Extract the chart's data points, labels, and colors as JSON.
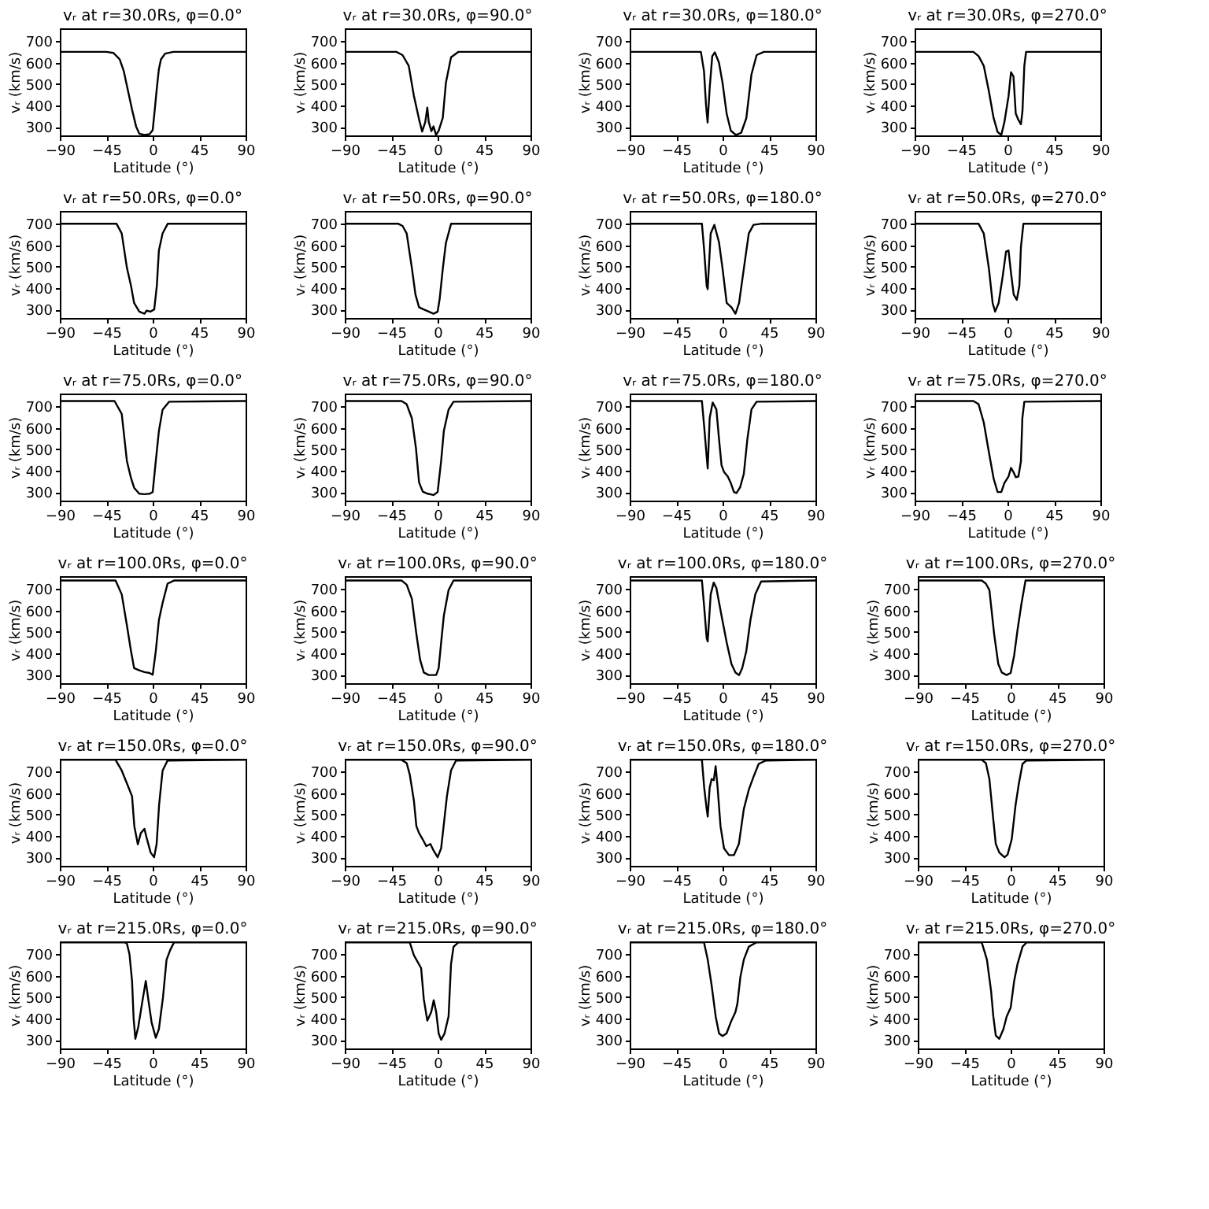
{
  "chart_data": [
    {
      "type": "line",
      "title": "vᵣ at r=30.0Rs, φ=0.0°",
      "xlabel": "Latitude (°)",
      "ylabel": "vᵣ (km/s)",
      "color": "#000000",
      "xlim": [
        -90,
        90
      ],
      "ylim": [
        260,
        760
      ],
      "xticks": [
        -90,
        -45,
        0,
        45,
        90
      ],
      "yticks": [
        300,
        400,
        500,
        600,
        700
      ],
      "x": [
        -90,
        -45,
        -38,
        -32,
        -28,
        -24,
        -20,
        -16,
        -13,
        -8,
        -3,
        0,
        2,
        4,
        6,
        8,
        12,
        20,
        90
      ],
      "values": [
        650,
        650,
        645,
        615,
        560,
        470,
        380,
        300,
        268,
        262,
        266,
        285,
        380,
        480,
        570,
        615,
        642,
        650,
        650
      ]
    },
    {
      "type": "line",
      "title": "vᵣ at r=30.0Rs, φ=90.0°",
      "xlabel": "Latitude (°)",
      "ylabel": "vᵣ (km/s)",
      "color": "#000000",
      "xlim": [
        -90,
        90
      ],
      "ylim": [
        260,
        760
      ],
      "xticks": [
        -90,
        -45,
        0,
        45,
        90
      ],
      "yticks": [
        300,
        400,
        500,
        600,
        700
      ],
      "x": [
        -90,
        -40,
        -34,
        -28,
        -23,
        -18,
        -15,
        -12,
        -10,
        -8.6,
        -6,
        -4,
        -1.5,
        1,
        5,
        8,
        13,
        20,
        90
      ],
      "values": [
        650,
        650,
        635,
        585,
        445,
        335,
        278,
        322,
        390,
        322,
        280,
        302,
        262,
        282,
        342,
        505,
        625,
        650,
        650
      ]
    },
    {
      "type": "line",
      "title": "vᵣ at r=30.0Rs, φ=180.0°",
      "xlabel": "Latitude (°)",
      "ylabel": "vᵣ (km/s)",
      "color": "#000000",
      "xlim": [
        -90,
        90
      ],
      "ylim": [
        260,
        760
      ],
      "xticks": [
        -90,
        -45,
        0,
        45,
        90
      ],
      "yticks": [
        300,
        400,
        500,
        600,
        700
      ],
      "x": [
        -90,
        -21,
        -18,
        -16,
        -14.5,
        -12.5,
        -10,
        -7.5,
        -3.5,
        0,
        4,
        8,
        13,
        18,
        23,
        28,
        33,
        40,
        90
      ],
      "values": [
        650,
        650,
        560,
        400,
        320,
        480,
        630,
        648,
        600,
        505,
        360,
        282,
        262,
        272,
        340,
        545,
        635,
        650,
        650
      ]
    },
    {
      "type": "line",
      "title": "vᵣ at r=30.0Rs, φ=270.0°",
      "xlabel": "Latitude (°)",
      "ylabel": "vᵣ (km/s)",
      "color": "#000000",
      "xlim": [
        -90,
        90
      ],
      "ylim": [
        260,
        760
      ],
      "xticks": [
        -90,
        -45,
        0,
        45,
        90
      ],
      "yticks": [
        300,
        400,
        500,
        600,
        700
      ],
      "x": [
        -90,
        -33,
        -28,
        -23,
        -18,
        -13.5,
        -9.6,
        -6,
        -3,
        1,
        3.4,
        5.8,
        8,
        10.6,
        13,
        14.5,
        16.3,
        18,
        90
      ],
      "values": [
        650,
        650,
        630,
        585,
        465,
        342,
        276,
        262,
        322,
        443,
        555,
        535,
        362,
        332,
        312,
        373,
        585,
        650,
        650
      ]
    },
    {
      "type": "line",
      "title": "vᵣ at r=50.0Rs, φ=0.0°",
      "xlabel": "Latitude (°)",
      "ylabel": "vᵣ (km/s)",
      "color": "#000000",
      "xlim": [
        -90,
        90
      ],
      "ylim": [
        260,
        760
      ],
      "xticks": [
        -90,
        -45,
        0,
        45,
        90
      ],
      "yticks": [
        300,
        400,
        500,
        600,
        700
      ],
      "x": [
        -90,
        -35,
        -30,
        -25,
        -21,
        -18,
        -13,
        -8,
        -6,
        -2,
        1.5,
        4,
        6,
        9.6,
        14.5,
        90
      ],
      "values": [
        700,
        700,
        655,
        495,
        410,
        330,
        290,
        280,
        294,
        290,
        300,
        410,
        575,
        655,
        700,
        700
      ]
    },
    {
      "type": "line",
      "title": "vᵣ at r=50.0Rs, φ=90.0°",
      "xlabel": "Latitude (°)",
      "ylabel": "vᵣ (km/s)",
      "color": "#000000",
      "xlim": [
        -90,
        90
      ],
      "ylim": [
        260,
        760
      ],
      "xticks": [
        -90,
        -45,
        0,
        45,
        90
      ],
      "yticks": [
        300,
        400,
        500,
        600,
        700
      ],
      "x": [
        -90,
        -38,
        -34,
        -30,
        -25,
        -21.5,
        -18,
        -13.5,
        -8.6,
        -4,
        0,
        2,
        5,
        8,
        13,
        90
      ],
      "values": [
        700,
        700,
        690,
        655,
        495,
        370,
        310,
        300,
        290,
        280,
        290,
        350,
        490,
        610,
        700,
        700
      ]
    },
    {
      "type": "line",
      "title": "vᵣ at r=50.0Rs, φ=180.0°",
      "xlabel": "Latitude (°)",
      "ylabel": "vᵣ (km/s)",
      "color": "#000000",
      "xlim": [
        -90,
        90
      ],
      "ylim": [
        260,
        760
      ],
      "xticks": [
        -90,
        -45,
        0,
        45,
        90
      ],
      "yticks": [
        300,
        400,
        500,
        600,
        700
      ],
      "x": [
        -90,
        -20,
        -17.8,
        -15.4,
        -14.4,
        -11.5,
        -8,
        -3.5,
        0,
        4,
        8.6,
        12.5,
        16,
        20.6,
        25.4,
        30,
        37,
        90
      ],
      "values": [
        700,
        700,
        575,
        410,
        395,
        655,
        695,
        615,
        490,
        330,
        310,
        280,
        330,
        490,
        655,
        695,
        700,
        700
      ]
    },
    {
      "type": "line",
      "title": "vᵣ at r=50.0Rs, φ=270.0°",
      "xlabel": "Latitude (°)",
      "ylabel": "vᵣ (km/s)",
      "color": "#000000",
      "xlim": [
        -90,
        90
      ],
      "ylim": [
        260,
        760
      ],
      "xticks": [
        -90,
        -45,
        0,
        45,
        90
      ],
      "yticks": [
        300,
        400,
        500,
        600,
        700
      ],
      "x": [
        -90,
        -28,
        -23,
        -18,
        -14.4,
        -12,
        -8.6,
        -4.8,
        -1.4,
        1,
        3.4,
        6,
        9,
        11.5,
        13,
        15.4,
        90
      ],
      "values": [
        700,
        700,
        655,
        490,
        330,
        290,
        330,
        450,
        570,
        575,
        470,
        370,
        345,
        410,
        590,
        700,
        700
      ]
    },
    {
      "type": "line",
      "title": "vᵣ at r=75.0Rs, φ=0.0°",
      "xlabel": "Latitude (°)",
      "ylabel": "vᵣ (km/s)",
      "color": "#000000",
      "xlim": [
        -90,
        90
      ],
      "ylim": [
        260,
        760
      ],
      "xticks": [
        -90,
        -45,
        0,
        45,
        90
      ],
      "yticks": [
        300,
        400,
        500,
        600,
        700
      ],
      "x": [
        -90,
        -37,
        -30,
        -25,
        -21,
        -18,
        -13,
        -8,
        -3,
        0,
        3,
        6,
        9.6,
        16,
        90
      ],
      "values": [
        725,
        725,
        665,
        445,
        365,
        320,
        292,
        290,
        292,
        300,
        445,
        585,
        685,
        722,
        725
      ]
    },
    {
      "type": "line",
      "title": "vᵣ at r=75.0Rs, φ=90.0°",
      "xlabel": "Latitude (°)",
      "ylabel": "vᵣ (km/s)",
      "color": "#000000",
      "xlim": [
        -90,
        90
      ],
      "ylim": [
        260,
        760
      ],
      "xticks": [
        -90,
        -45,
        0,
        45,
        90
      ],
      "yticks": [
        300,
        400,
        500,
        600,
        700
      ],
      "x": [
        -90,
        -35,
        -30,
        -25,
        -21,
        -18,
        -14.4,
        -9.6,
        -4,
        0,
        3.4,
        6,
        10.6,
        15.4,
        90
      ],
      "values": [
        725,
        725,
        710,
        645,
        505,
        345,
        302,
        292,
        286,
        300,
        445,
        585,
        685,
        722,
        725
      ]
    },
    {
      "type": "line",
      "title": "vᵣ at r=75.0Rs, φ=180.0°",
      "xlabel": "Latitude (°)",
      "ylabel": "vᵣ (km/s)",
      "color": "#000000",
      "xlim": [
        -90,
        90
      ],
      "ylim": [
        260,
        760
      ],
      "xticks": [
        -90,
        -45,
        0,
        45,
        90
      ],
      "yticks": [
        300,
        400,
        500,
        600,
        700
      ],
      "x": [
        -90,
        -20,
        -17.8,
        -15.4,
        -14.4,
        -12.5,
        -9.6,
        -6,
        -3.4,
        -1,
        1.5,
        5,
        8,
        11,
        13.5,
        17,
        20.6,
        24,
        28,
        33,
        90
      ],
      "values": [
        725,
        725,
        605,
        465,
        410,
        645,
        718,
        686,
        545,
        425,
        393,
        373,
        342,
        300,
        295,
        322,
        385,
        545,
        686,
        722,
        725
      ]
    },
    {
      "type": "line",
      "title": "vᵣ at r=75.0Rs, φ=270.0°",
      "xlabel": "Latitude (°)",
      "ylabel": "vᵣ (km/s)",
      "color": "#000000",
      "xlim": [
        -90,
        90
      ],
      "ylim": [
        260,
        760
      ],
      "xticks": [
        -90,
        -45,
        0,
        45,
        90
      ],
      "yticks": [
        300,
        400,
        500,
        600,
        700
      ],
      "x": [
        -90,
        -33,
        -28,
        -23,
        -18,
        -13.4,
        -9.6,
        -6,
        -3,
        1,
        3.4,
        5.8,
        8,
        10.6,
        13,
        14.4,
        16.3,
        90
      ],
      "values": [
        725,
        725,
        710,
        625,
        485,
        362,
        300,
        300,
        342,
        373,
        413,
        393,
        369,
        373,
        443,
        645,
        722,
        725
      ]
    },
    {
      "type": "line",
      "title": "vᵣ at r=100.0Rs, φ=0.0°",
      "xlabel": "Latitude (°)",
      "ylabel": "vᵣ (km/s)",
      "color": "#000000",
      "xlim": [
        -90,
        90
      ],
      "ylim": [
        260,
        760
      ],
      "xticks": [
        -90,
        -45,
        0,
        45,
        90
      ],
      "yticks": [
        300,
        400,
        500,
        600,
        700
      ],
      "x": [
        -90,
        -36,
        -30,
        -25,
        -21,
        -18,
        -13,
        -8,
        -3,
        0,
        3,
        6,
        9.6,
        14.4,
        21,
        90
      ],
      "values": [
        740,
        740,
        675,
        530,
        410,
        330,
        320,
        312,
        308,
        300,
        410,
        555,
        635,
        725,
        740,
        740
      ]
    },
    {
      "type": "line",
      "title": "vᵣ at r=100.0Rs, φ=90.0°",
      "xlabel": "Latitude (°)",
      "ylabel": "vᵣ (km/s)",
      "color": "#000000",
      "xlim": [
        -90,
        90
      ],
      "ylim": [
        260,
        760
      ],
      "xticks": [
        -90,
        -45,
        0,
        45,
        90
      ],
      "yticks": [
        300,
        400,
        500,
        600,
        700
      ],
      "x": [
        -90,
        -35,
        -30,
        -25,
        -20.6,
        -17,
        -13.4,
        -8.6,
        -1.4,
        1,
        3.4,
        6,
        10.6,
        15.4,
        90
      ],
      "values": [
        740,
        740,
        720,
        655,
        490,
        370,
        310,
        298,
        298,
        330,
        450,
        575,
        695,
        740,
        740
      ]
    },
    {
      "type": "line",
      "title": "vᵣ at r=100.0Rs, φ=180.0°",
      "xlabel": "Latitude (°)",
      "ylabel": "vᵣ (km/s)",
      "color": "#000000",
      "xlim": [
        -90,
        90
      ],
      "ylim": [
        260,
        760
      ],
      "xticks": [
        -90,
        -45,
        0,
        45,
        90
      ],
      "yticks": [
        300,
        400,
        500,
        600,
        700
      ],
      "x": [
        -90,
        -20,
        -17.8,
        -15.4,
        -14.4,
        -11.5,
        -8.6,
        -6,
        -1,
        4,
        8.6,
        12.5,
        16,
        19,
        23,
        27,
        31.7,
        37.4,
        90
      ],
      "values": [
        740,
        740,
        615,
        470,
        455,
        675,
        730,
        705,
        575,
        450,
        350,
        310,
        298,
        330,
        410,
        555,
        675,
        735,
        740
      ]
    },
    {
      "type": "line",
      "title": "vᵣ at r=100.0Rs, φ=270.0°",
      "xlabel": "Latitude (°)",
      "ylabel": "vᵣ (km/s)",
      "color": "#000000",
      "xlim": [
        -90,
        90
      ],
      "ylim": [
        260,
        760
      ],
      "xticks": [
        -90,
        -45,
        0,
        45,
        90
      ],
      "yticks": [
        300,
        400,
        500,
        600,
        700
      ],
      "x": [
        -90,
        -28,
        -24,
        -20.6,
        -16,
        -12,
        -8.6,
        -4,
        0,
        3.4,
        6.7,
        10.6,
        14.4,
        90
      ],
      "values": [
        740,
        740,
        725,
        695,
        490,
        350,
        310,
        298,
        308,
        390,
        510,
        635,
        740,
        740
      ]
    },
    {
      "type": "line",
      "title": "vᵣ at r=150.0Rs, φ=0.0°",
      "xlabel": "Latitude (°)",
      "ylabel": "vᵣ (km/s)",
      "color": "#000000",
      "xlim": [
        -90,
        90
      ],
      "ylim": [
        260,
        760
      ],
      "xticks": [
        -90,
        -45,
        0,
        45,
        90
      ],
      "yticks": [
        300,
        400,
        500,
        600,
        700
      ],
      "x": [
        -90,
        -36,
        -30,
        -25,
        -20,
        -17.8,
        -14.4,
        -11.5,
        -8,
        -6,
        -2,
        1.4,
        3.8,
        6.2,
        9.6,
        14.4,
        90
      ],
      "values": [
        755,
        755,
        705,
        645,
        585,
        445,
        360,
        413,
        433,
        393,
        322,
        300,
        362,
        545,
        705,
        752,
        755
      ]
    },
    {
      "type": "line",
      "title": "vᵣ at r=150.0Rs, φ=90.0°",
      "xlabel": "Latitude (°)",
      "ylabel": "vᵣ (km/s)",
      "color": "#000000",
      "xlim": [
        -90,
        90
      ],
      "ylim": [
        260,
        760
      ],
      "xticks": [
        -90,
        -45,
        0,
        45,
        90
      ],
      "yticks": [
        300,
        400,
        500,
        600,
        700
      ],
      "x": [
        -90,
        -35,
        -30,
        -27,
        -23,
        -20.6,
        -18,
        -14.4,
        -11,
        -7,
        -4,
        0,
        3.4,
        5.8,
        9,
        13,
        17.8,
        90
      ],
      "values": [
        755,
        755,
        740,
        686,
        565,
        445,
        413,
        383,
        352,
        362,
        332,
        300,
        342,
        445,
        585,
        706,
        752,
        755
      ]
    },
    {
      "type": "line",
      "title": "vᵣ at r=150.0Rs, φ=180.0°",
      "xlabel": "Latitude (°)",
      "ylabel": "vᵣ (km/s)",
      "color": "#000000",
      "xlim": [
        -90,
        90
      ],
      "ylim": [
        260,
        760
      ],
      "xticks": [
        -90,
        -45,
        0,
        45,
        90
      ],
      "yticks": [
        300,
        400,
        500,
        600,
        700
      ],
      "x": [
        -90,
        -20,
        -17.8,
        -15.4,
        -14.4,
        -12.5,
        -10.6,
        -8.5,
        -6.7,
        -4.8,
        -2,
        1.4,
        6.2,
        11,
        15.8,
        20.6,
        25.4,
        30,
        35,
        42,
        90
      ],
      "values": [
        755,
        755,
        625,
        525,
        490,
        625,
        665,
        660,
        725,
        625,
        445,
        342,
        310,
        310,
        362,
        525,
        615,
        676,
        736,
        752,
        755
      ]
    },
    {
      "type": "line",
      "title": "vᵣ at r=150.0Rs, φ=270.0°",
      "xlabel": "Latitude (°)",
      "ylabel": "vᵣ (km/s)",
      "color": "#000000",
      "xlim": [
        -90,
        90
      ],
      "ylim": [
        260,
        760
      ],
      "xticks": [
        -90,
        -45,
        0,
        45,
        90
      ],
      "yticks": [
        300,
        400,
        500,
        600,
        700
      ],
      "x": [
        -90,
        -28,
        -24,
        -20.6,
        -17,
        -14.4,
        -11,
        -6,
        -3,
        1,
        4.8,
        8,
        11.5,
        15.4,
        90
      ],
      "values": [
        755,
        755,
        740,
        665,
        485,
        362,
        322,
        300,
        312,
        383,
        545,
        645,
        736,
        752,
        755
      ]
    },
    {
      "type": "line",
      "title": "vᵣ at r=215.0Rs, φ=0.0°",
      "xlabel": "Latitude (°)",
      "ylabel": "vᵣ (km/s)",
      "color": "#000000",
      "xlim": [
        -90,
        90
      ],
      "ylim": [
        260,
        760
      ],
      "xticks": [
        -90,
        -45,
        0,
        45,
        90
      ],
      "yticks": [
        300,
        400,
        500,
        600,
        700
      ],
      "x": [
        -90,
        -27,
        -25,
        -22.5,
        -20,
        -18.5,
        -16.8,
        -14,
        -10,
        -6.7,
        -4,
        -1,
        3,
        6,
        10,
        13.4,
        17,
        20.6,
        90
      ],
      "values": [
        755,
        755,
        750,
        700,
        575,
        400,
        305,
        360,
        480,
        575,
        480,
        380,
        310,
        350,
        500,
        674,
        720,
        755,
        755
      ]
    },
    {
      "type": "line",
      "title": "vᵣ at r=215.0Rs, φ=90.0°",
      "xlabel": "Latitude (°)",
      "ylabel": "vᵣ (km/s)",
      "color": "#000000",
      "xlim": [
        -90,
        90
      ],
      "ylim": [
        260,
        760
      ],
      "xticks": [
        -90,
        -45,
        0,
        45,
        90
      ],
      "yticks": [
        300,
        400,
        500,
        600,
        700
      ],
      "x": [
        -90,
        -27,
        -23,
        -16,
        -13.4,
        -10,
        -6.2,
        -3.8,
        -1.4,
        1,
        3.4,
        6.7,
        10.6,
        13,
        15.4,
        20,
        90
      ],
      "values": [
        755,
        755,
        695,
        635,
        490,
        390,
        430,
        485,
        430,
        330,
        300,
        330,
        410,
        655,
        735,
        755,
        755
      ]
    },
    {
      "type": "line",
      "title": "vᵣ at r=215.0Rs, φ=180.0°",
      "xlabel": "Latitude (°)",
      "ylabel": "vᵣ (km/s)",
      "color": "#000000",
      "xlim": [
        -90,
        90
      ],
      "ylim": [
        260,
        760
      ],
      "xticks": [
        -90,
        -45,
        0,
        45,
        90
      ],
      "yticks": [
        300,
        400,
        500,
        600,
        700
      ],
      "x": [
        -90,
        -18,
        -14.4,
        -10.6,
        -6.7,
        -3.4,
        0,
        3.8,
        8.6,
        12.5,
        14.4,
        17.3,
        20.6,
        25.4,
        32.6,
        90
      ],
      "values": [
        755,
        755,
        675,
        555,
        410,
        330,
        318,
        330,
        390,
        430,
        470,
        595,
        675,
        735,
        755,
        755
      ]
    },
    {
      "type": "line",
      "title": "vᵣ at r=215.0Rs, φ=270.0°",
      "xlabel": "Latitude (°)",
      "ylabel": "vᵣ (km/s)",
      "color": "#000000",
      "xlim": [
        -90,
        90
      ],
      "ylim": [
        260,
        760
      ],
      "xticks": [
        -90,
        -45,
        0,
        45,
        90
      ],
      "yticks": [
        300,
        400,
        500,
        600,
        700
      ],
      "x": [
        -90,
        -28,
        -23,
        -19,
        -16.8,
        -14.4,
        -11,
        -7,
        -3.8,
        0,
        3.4,
        6.7,
        11.5,
        15.4,
        90
      ],
      "values": [
        755,
        755,
        675,
        530,
        410,
        320,
        305,
        350,
        410,
        450,
        575,
        655,
        735,
        755,
        755
      ]
    }
  ]
}
